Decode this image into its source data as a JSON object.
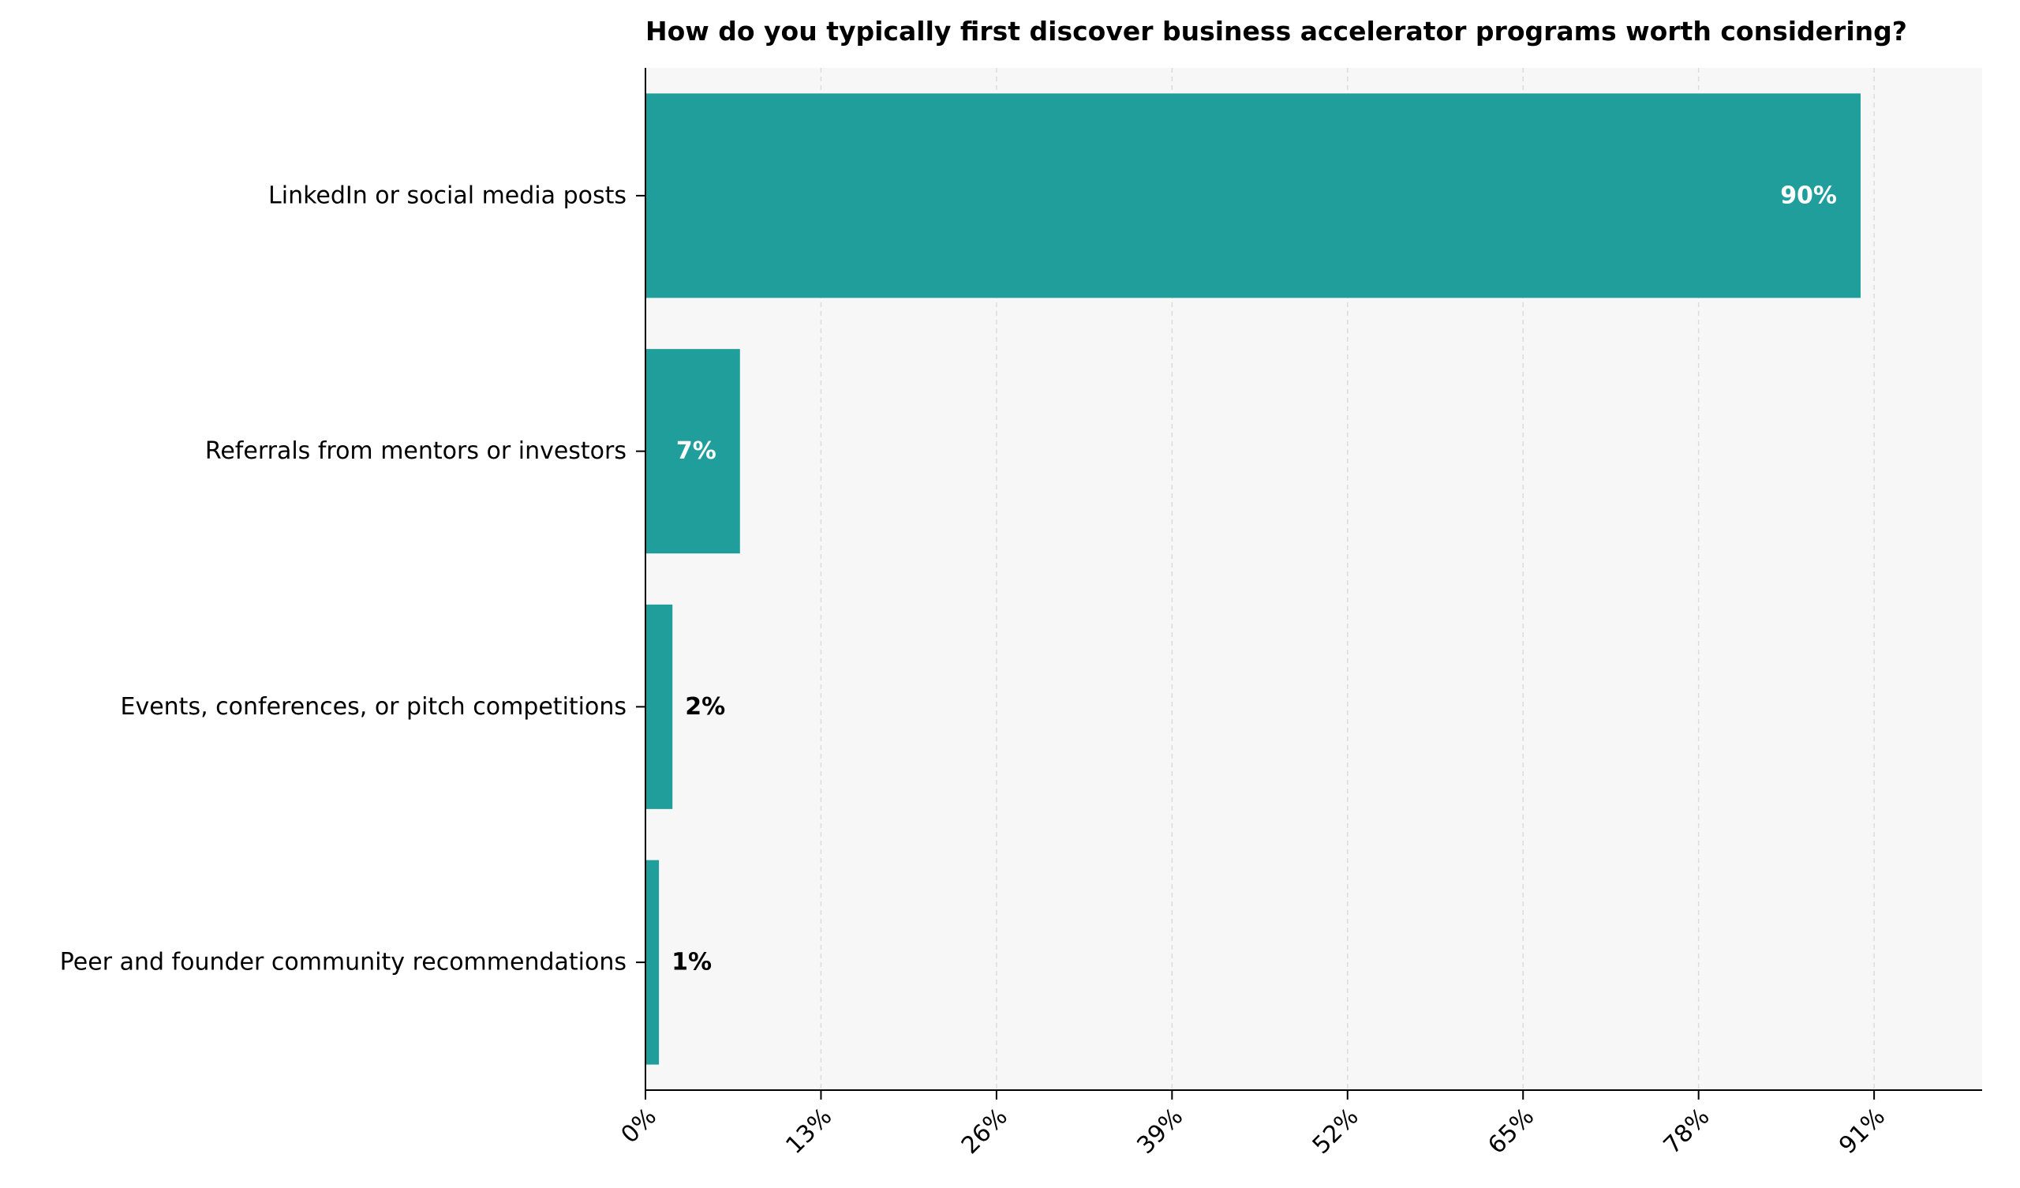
{
  "chart_data": {
    "type": "bar",
    "orientation": "horizontal",
    "title": "How do you typically first discover business accelerator programs worth considering?",
    "xlabel": "",
    "ylabel": "",
    "categories": [
      "LinkedIn or social media posts",
      "Referrals from mentors or investors",
      "Events, conferences, or pitch competitions",
      "Peer and founder community recommendations"
    ],
    "values": [
      90,
      7,
      2,
      1
    ],
    "value_labels": [
      "90%",
      "7%",
      "2%",
      "1%"
    ],
    "xlim": [
      0,
      99
    ],
    "x_ticks": [
      0,
      13,
      26,
      39,
      52,
      65,
      78,
      91
    ],
    "x_tick_labels": [
      "0%",
      "13%",
      "26%",
      "39%",
      "52%",
      "65%",
      "78%",
      "91%"
    ],
    "grid": "vertical dashed",
    "bar_color": "#1f9e9b",
    "plot_background": "#f7f7f7"
  }
}
